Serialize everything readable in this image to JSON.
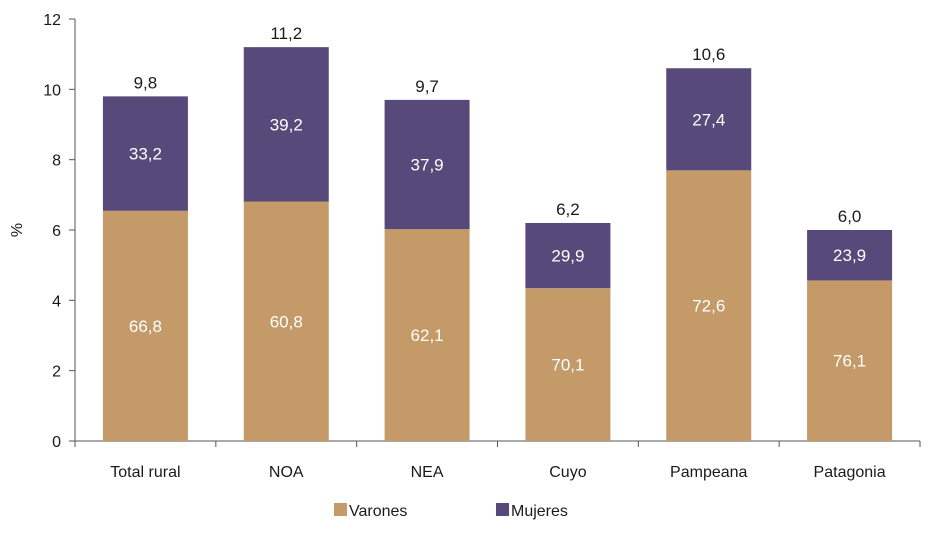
{
  "chart_data": {
    "type": "bar",
    "stacked": true,
    "categories": [
      "Total rural",
      "NOA",
      "NEA",
      "Cuyo",
      "Pampeana",
      "Patagonia"
    ],
    "totals": [
      9.8,
      11.2,
      9.7,
      6.2,
      10.6,
      6.0
    ],
    "totals_labels": [
      "9,8",
      "11,2",
      "9,7",
      "6,2",
      "10,6",
      "6,0"
    ],
    "series": [
      {
        "name": "Varones",
        "color": "#c39a68",
        "share_pct": [
          66.8,
          60.8,
          62.1,
          70.1,
          72.6,
          76.1
        ],
        "share_labels": [
          "66,8",
          "60,8",
          "62,1",
          "70,1",
          "72,6",
          "76,1"
        ]
      },
      {
        "name": "Mujeres",
        "color": "#574a7a",
        "share_pct": [
          33.2,
          39.2,
          37.9,
          29.9,
          27.4,
          23.9
        ],
        "share_labels": [
          "33,2",
          "39,2",
          "37,9",
          "29,9",
          "27,4",
          "23,9"
        ]
      }
    ],
    "ylabel": "%",
    "ylim": [
      0,
      12
    ],
    "yticks": [
      0,
      2,
      4,
      6,
      8,
      10,
      12
    ],
    "grid": false,
    "legend": "bottom"
  }
}
